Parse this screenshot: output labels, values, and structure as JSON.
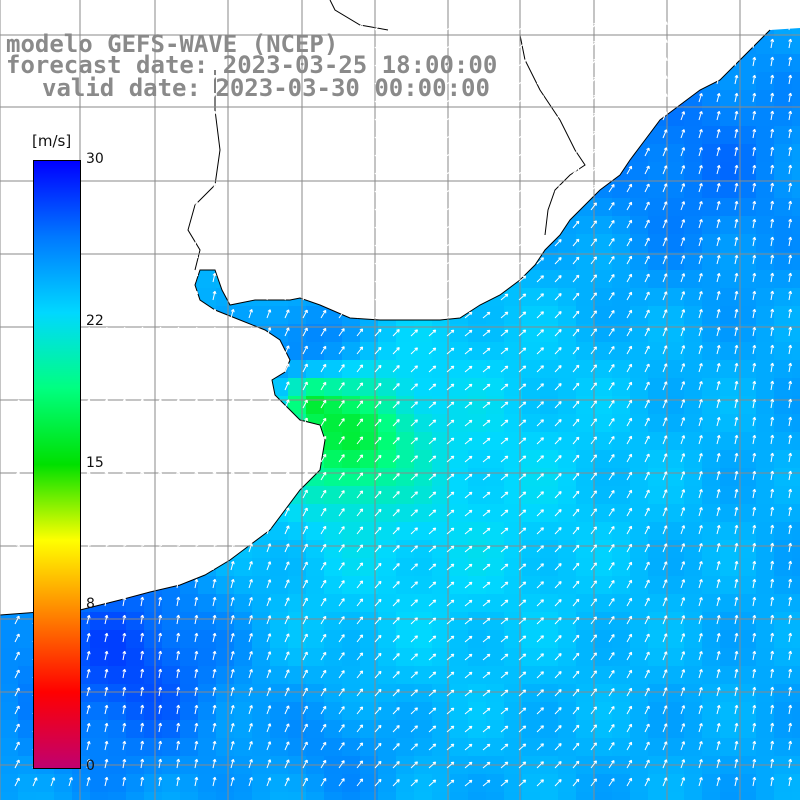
{
  "title": {
    "line1": "modelo GEFS-WAVE (NCEP)",
    "line2": "forecast date: 2023-03-25 18:00:00",
    "line3": "valid date: 2023-03-30 00:00:00"
  },
  "colorbar": {
    "unit": "[m/s]",
    "ticks": [
      "30",
      "22",
      "15",
      "8",
      "0"
    ],
    "tick_values": [
      30,
      22,
      15,
      8,
      0
    ],
    "range": [
      0,
      30
    ],
    "colors": [
      "#0000ff",
      "#0078ff",
      "#00d8ff",
      "#00ff80",
      "#00e000",
      "#ffff00",
      "#ff8000",
      "#ff0000",
      "#c00070"
    ]
  },
  "field": {
    "variable": "wind speed",
    "arrow_direction": "from south-west to north-east",
    "land_color": "#ffffff",
    "grid_color": "#8a8a8a"
  }
}
